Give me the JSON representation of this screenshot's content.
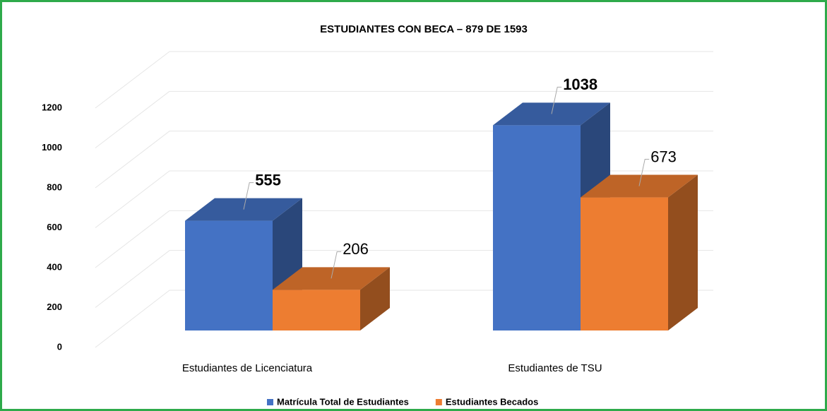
{
  "chart_data": {
    "type": "bar3d",
    "title": "ESTUDIANTES CON BECA – 879 DE 1593",
    "categories": [
      "Estudiantes de Licenciatura",
      "Estudiantes de TSU"
    ],
    "series": [
      {
        "name": "Matrícula Total de Estudiantes",
        "color": "#4472c4",
        "values": [
          555,
          1038
        ]
      },
      {
        "name": "Estudiantes Becados",
        "color": "#ed7d31",
        "values": [
          206,
          673
        ]
      }
    ],
    "ylim": [
      0,
      1200
    ],
    "yticks": [
      0,
      200,
      400,
      600,
      800,
      1000,
      1200
    ],
    "grid": true,
    "legend": "bottom"
  }
}
